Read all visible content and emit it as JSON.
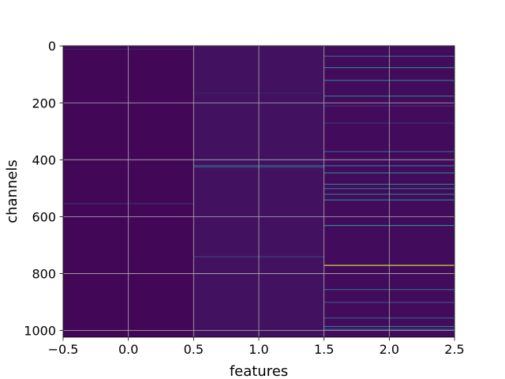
{
  "chart_data": {
    "type": "heatmap",
    "title": "",
    "xlabel": "features",
    "ylabel": "channels",
    "xlim": [
      -0.5,
      2.5
    ],
    "ylim": [
      -0.5,
      1023.5
    ],
    "y_inverted": true,
    "grid": true,
    "grid_color": "#b0b0b0",
    "colormap": "viridis",
    "columns": [
      0,
      1,
      2
    ],
    "rows": 1024,
    "background_values": [
      0.02,
      0.05,
      0.03
    ],
    "xticks": [
      -0.5,
      0.0,
      0.5,
      1.0,
      1.5,
      2.0,
      2.5
    ],
    "xtick_labels": [
      "−0.5",
      "0.0",
      "0.5",
      "1.0",
      "1.5",
      "2.0",
      "2.5"
    ],
    "yticks": [
      0,
      200,
      400,
      600,
      800,
      1000
    ],
    "ytick_labels": [
      "0",
      "200",
      "400",
      "600",
      "800",
      "1000"
    ],
    "highlights": [
      {
        "column": 0,
        "channel": 10,
        "value": 0.1
      },
      {
        "column": 0,
        "channel": 553,
        "value": 0.14
      },
      {
        "column": 1,
        "channel": 165,
        "value": 0.1
      },
      {
        "column": 1,
        "channel": 420,
        "value": 0.38
      },
      {
        "column": 1,
        "channel": 425,
        "value": 0.22
      },
      {
        "column": 1,
        "channel": 740,
        "value": 0.2
      },
      {
        "column": 2,
        "channel": 35,
        "value": 0.35
      },
      {
        "column": 2,
        "channel": 75,
        "value": 0.45
      },
      {
        "column": 2,
        "channel": 120,
        "value": 0.4
      },
      {
        "column": 2,
        "channel": 175,
        "value": 0.38
      },
      {
        "column": 2,
        "channel": 210,
        "value": 0.15
      },
      {
        "column": 2,
        "channel": 270,
        "value": 0.15
      },
      {
        "column": 2,
        "channel": 370,
        "value": 0.3
      },
      {
        "column": 2,
        "channel": 420,
        "value": 0.4
      },
      {
        "column": 2,
        "channel": 445,
        "value": 0.45
      },
      {
        "column": 2,
        "channel": 485,
        "value": 0.42
      },
      {
        "column": 2,
        "channel": 500,
        "value": 0.35
      },
      {
        "column": 2,
        "channel": 520,
        "value": 0.4
      },
      {
        "column": 2,
        "channel": 540,
        "value": 0.45
      },
      {
        "column": 2,
        "channel": 630,
        "value": 0.5
      },
      {
        "column": 2,
        "channel": 770,
        "value": 0.95
      },
      {
        "column": 2,
        "channel": 855,
        "value": 0.35
      },
      {
        "column": 2,
        "channel": 900,
        "value": 0.25
      },
      {
        "column": 2,
        "channel": 955,
        "value": 0.3
      },
      {
        "column": 2,
        "channel": 985,
        "value": 0.42
      },
      {
        "column": 2,
        "channel": 995,
        "value": 0.3
      }
    ]
  }
}
